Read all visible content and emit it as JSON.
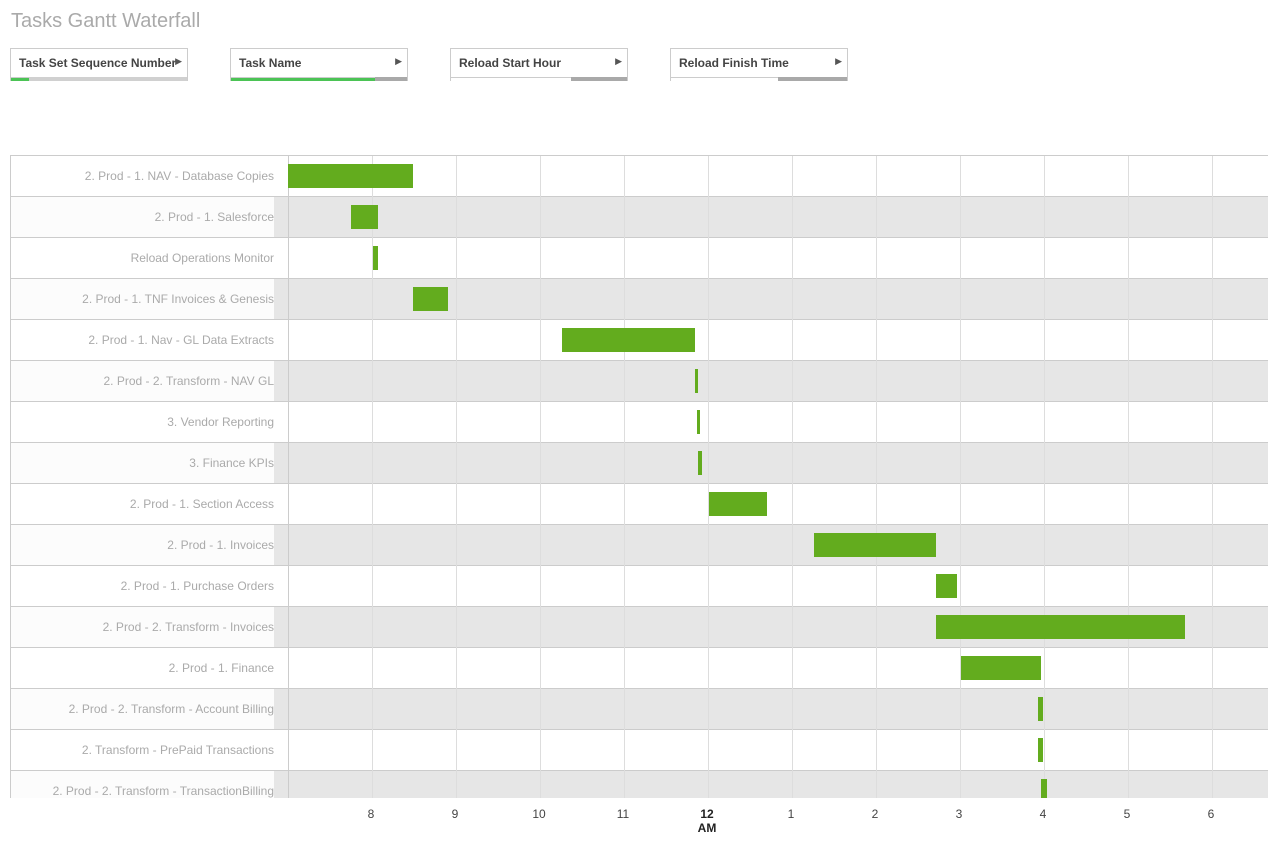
{
  "title": "Tasks Gantt Waterfall",
  "filters": [
    {
      "label": "Task Set Sequence Number",
      "selected_fraction": 0.1,
      "states": [
        "#4bc355",
        "#d0d0d0"
      ]
    },
    {
      "label": "Task Name",
      "selected_fraction": 0.82,
      "states": [
        "#4bc355",
        "#a9a9a9"
      ]
    },
    {
      "label": "Reload Start Hour",
      "selected_fraction": 0.68,
      "states": [
        "#ffffff",
        "#a9a9a9"
      ]
    },
    {
      "label": "Reload Finish Time",
      "selected_fraction": 0.61,
      "states": [
        "#ffffff",
        "#a9a9a9"
      ]
    }
  ],
  "chart_data": {
    "type": "gantt",
    "bar_color": "#63ac1e",
    "x_range": [
      "19:00",
      "06:41"
    ],
    "x_ticks": [
      {
        "label": "8",
        "time": "20:00"
      },
      {
        "label": "9",
        "time": "21:00"
      },
      {
        "label": "10",
        "time": "22:00"
      },
      {
        "label": "11",
        "time": "23:00"
      },
      {
        "label": "12",
        "sub": "AM",
        "time": "00:00"
      },
      {
        "label": "1",
        "time": "01:00"
      },
      {
        "label": "2",
        "time": "02:00"
      },
      {
        "label": "3",
        "time": "03:00"
      },
      {
        "label": "4",
        "time": "04:00"
      },
      {
        "label": "5",
        "time": "05:00"
      },
      {
        "label": "6",
        "time": "06:00"
      }
    ],
    "tasks": [
      {
        "name": "2. Prod - 1. NAV - Database Copies",
        "start": "19:00",
        "end": "20:29"
      },
      {
        "name": "2. Prod - 1. Salesforce",
        "start": "19:45",
        "end": "20:04"
      },
      {
        "name": "Reload Operations Monitor",
        "start": "20:01",
        "end": "20:04"
      },
      {
        "name": "2. Prod - 1. TNF Invoices & Genesis",
        "start": "20:29",
        "end": "20:54"
      },
      {
        "name": "2. Prod - 1. Nav - GL Data Extracts",
        "start": "22:16",
        "end": "23:51"
      },
      {
        "name": "2. Prod - 2. Transform - NAV GL",
        "start": "23:51",
        "end": "23:53"
      },
      {
        "name": "3. Vendor Reporting",
        "start": "23:52",
        "end": "23:54"
      },
      {
        "name": "3. Finance KPIs",
        "start": "23:53",
        "end": "23:56"
      },
      {
        "name": "2. Prod - 1. Section Access",
        "start": "00:01",
        "end": "00:42"
      },
      {
        "name": "2. Prod - 1. Invoices",
        "start": "01:16",
        "end": "02:43"
      },
      {
        "name": "2. Prod - 1. Purchase Orders",
        "start": "02:43",
        "end": "02:58"
      },
      {
        "name": "2. Prod - 2. Transform - Invoices",
        "start": "02:43",
        "end": "05:41"
      },
      {
        "name": "2. Prod - 1. Finance",
        "start": "03:01",
        "end": "03:58"
      },
      {
        "name": "2. Prod - 2. Transform - Account Billing",
        "start": "03:56",
        "end": "03:59"
      },
      {
        "name": "2. Transform - PrePaid Transactions",
        "start": "03:56",
        "end": "03:59"
      },
      {
        "name": "2. Prod - 2. Transform - TransactionBilling",
        "start": "03:58",
        "end": "04:02"
      }
    ]
  }
}
